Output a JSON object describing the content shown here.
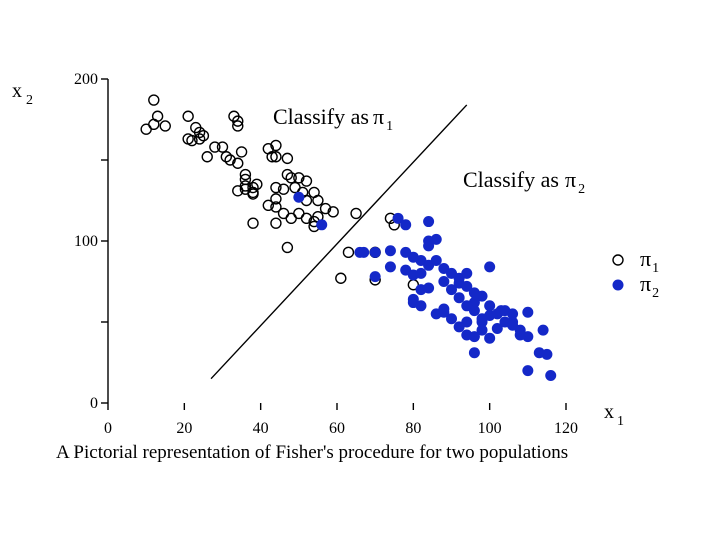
{
  "chart_data": {
    "type": "scatter",
    "title": "",
    "caption": "A Pictorial representation of Fisher's procedure for two populations",
    "xlabel": {
      "letter": "x",
      "subscript": "1"
    },
    "ylabel": {
      "letter": "x",
      "subscript": "2"
    },
    "xlim": [
      0,
      120
    ],
    "ylim": [
      0,
      200
    ],
    "x_ticks": [
      0,
      20,
      40,
      60,
      80,
      100,
      120
    ],
    "y_ticks_labeled": [
      0,
      100,
      200
    ],
    "y_ticks_minor": [
      50,
      150
    ],
    "grid": false,
    "region_labels": [
      {
        "text": "Classify as",
        "symbol": "π",
        "subscript": "1"
      },
      {
        "text": "Classify as",
        "symbol": "π",
        "subscript": "2"
      }
    ],
    "boundary_line": {
      "x": [
        27,
        94
      ],
      "y": [
        15,
        184
      ]
    },
    "legend": {
      "position": "right",
      "entries": [
        {
          "symbol": "π",
          "subscript": "1",
          "marker": "open-circle"
        },
        {
          "symbol": "π",
          "subscript": "2",
          "marker": "filled-circle"
        }
      ]
    },
    "series": [
      {
        "marker": "open-circle",
        "color": "#000000",
        "points": [
          [
            12,
            187
          ],
          [
            13,
            177
          ],
          [
            10,
            169
          ],
          [
            12,
            172
          ],
          [
            15,
            171
          ],
          [
            21,
            177
          ],
          [
            23,
            170
          ],
          [
            24,
            167
          ],
          [
            21,
            163
          ],
          [
            22,
            162
          ],
          [
            24,
            163
          ],
          [
            25,
            165
          ],
          [
            28,
            158
          ],
          [
            30,
            158
          ],
          [
            26,
            152
          ],
          [
            33,
            177
          ],
          [
            34,
            174
          ],
          [
            34,
            171
          ],
          [
            35,
            155
          ],
          [
            31,
            152
          ],
          [
            32,
            150
          ],
          [
            34,
            148
          ],
          [
            36,
            141
          ],
          [
            36,
            138
          ],
          [
            38,
            133
          ],
          [
            39,
            135
          ],
          [
            36,
            134
          ],
          [
            36,
            132
          ],
          [
            34,
            131
          ],
          [
            38,
            129
          ],
          [
            38,
            130
          ],
          [
            42,
            157
          ],
          [
            43,
            152
          ],
          [
            44,
            159
          ],
          [
            44,
            152
          ],
          [
            47,
            151
          ],
          [
            47,
            141
          ],
          [
            48,
            139
          ],
          [
            50,
            139
          ],
          [
            52,
            137
          ],
          [
            49,
            133
          ],
          [
            51,
            130
          ],
          [
            54,
            130
          ],
          [
            55,
            125
          ],
          [
            52,
            125
          ],
          [
            46,
            132
          ],
          [
            44,
            133
          ],
          [
            44,
            126
          ],
          [
            44,
            121
          ],
          [
            42,
            122
          ],
          [
            46,
            117
          ],
          [
            50,
            117
          ],
          [
            48,
            114
          ],
          [
            52,
            114
          ],
          [
            55,
            115
          ],
          [
            57,
            120
          ],
          [
            59,
            118
          ],
          [
            54,
            112
          ],
          [
            54,
            109
          ],
          [
            44,
            111
          ],
          [
            38,
            111
          ],
          [
            47,
            96
          ],
          [
            65,
            117
          ],
          [
            63,
            93
          ],
          [
            61,
            77
          ],
          [
            70,
            93
          ],
          [
            74,
            114
          ],
          [
            75,
            110
          ],
          [
            70,
            76
          ],
          [
            80,
            73
          ]
        ]
      },
      {
        "marker": "filled-circle",
        "color": "#1428c8",
        "points": [
          [
            50,
            127
          ],
          [
            56,
            110
          ],
          [
            76,
            114
          ],
          [
            78,
            110
          ],
          [
            84,
            112
          ],
          [
            84,
            97
          ],
          [
            84,
            100
          ],
          [
            86,
            101
          ],
          [
            66,
            93
          ],
          [
            67,
            93
          ],
          [
            70,
            93
          ],
          [
            74,
            94
          ],
          [
            78,
            82
          ],
          [
            80,
            79
          ],
          [
            82,
            80
          ],
          [
            82,
            88
          ],
          [
            84,
            85
          ],
          [
            80,
            90
          ],
          [
            86,
            88
          ],
          [
            88,
            83
          ],
          [
            90,
            80
          ],
          [
            92,
            77
          ],
          [
            94,
            80
          ],
          [
            88,
            75
          ],
          [
            90,
            70
          ],
          [
            92,
            74
          ],
          [
            94,
            72
          ],
          [
            100,
            84
          ],
          [
            96,
            68
          ],
          [
            98,
            66
          ],
          [
            96,
            62
          ],
          [
            92,
            65
          ],
          [
            100,
            60
          ],
          [
            100,
            54
          ],
          [
            96,
            57
          ],
          [
            88,
            58
          ],
          [
            86,
            55
          ],
          [
            90,
            52
          ],
          [
            94,
            50
          ],
          [
            92,
            47
          ],
          [
            94,
            42
          ],
          [
            98,
            50
          ],
          [
            98,
            45
          ],
          [
            96,
            41
          ],
          [
            100,
            40
          ],
          [
            102,
            46
          ],
          [
            104,
            50
          ],
          [
            106,
            50
          ],
          [
            108,
            45
          ],
          [
            110,
            41
          ],
          [
            103,
            57
          ],
          [
            106,
            55
          ],
          [
            110,
            56
          ],
          [
            114,
            45
          ],
          [
            113,
            31
          ],
          [
            115,
            30
          ],
          [
            110,
            20
          ],
          [
            116,
            17
          ],
          [
            96,
            31
          ],
          [
            84,
            71
          ],
          [
            80,
            62
          ],
          [
            80,
            64
          ],
          [
            82,
            60
          ],
          [
            88,
            56
          ],
          [
            70,
            78
          ],
          [
            82,
            70
          ],
          [
            94,
            60
          ],
          [
            106,
            48
          ],
          [
            108,
            42
          ],
          [
            102,
            55
          ],
          [
            98,
            52
          ],
          [
            104,
            57
          ],
          [
            74,
            84
          ],
          [
            78,
            93
          ]
        ]
      }
    ]
  }
}
